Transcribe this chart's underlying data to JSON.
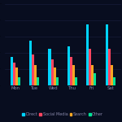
{
  "background_color": "#080d1f",
  "categories": [
    "Mon",
    "Tue",
    "Wed",
    "Thu",
    "Fri",
    "Sat"
  ],
  "series": {
    "Direct": [
      3.5,
      5.5,
      4.5,
      4.8,
      7.5,
      7.5
    ],
    "Social Media": [
      2.8,
      3.8,
      3.2,
      3.5,
      4.5,
      4.5
    ],
    "Search": [
      2.2,
      2.5,
      2.2,
      2.5,
      2.5,
      2.5
    ],
    "Other": [
      1.0,
      1.0,
      1.0,
      1.0,
      1.5,
      1.0
    ]
  },
  "colors": {
    "Direct": "#00d4ff",
    "Social Media": "#ff4560",
    "Search": "#f5a623",
    "Other": "#00e396"
  },
  "legend_order": [
    "Direct",
    "Social Media",
    "Search",
    "Other"
  ],
  "bar_width": 0.13,
  "grid_color": "#1a2040",
  "tick_color": "#8888aa",
  "tick_fontsize": 3.8,
  "legend_fontsize": 3.5,
  "ylim": [
    0,
    10
  ]
}
